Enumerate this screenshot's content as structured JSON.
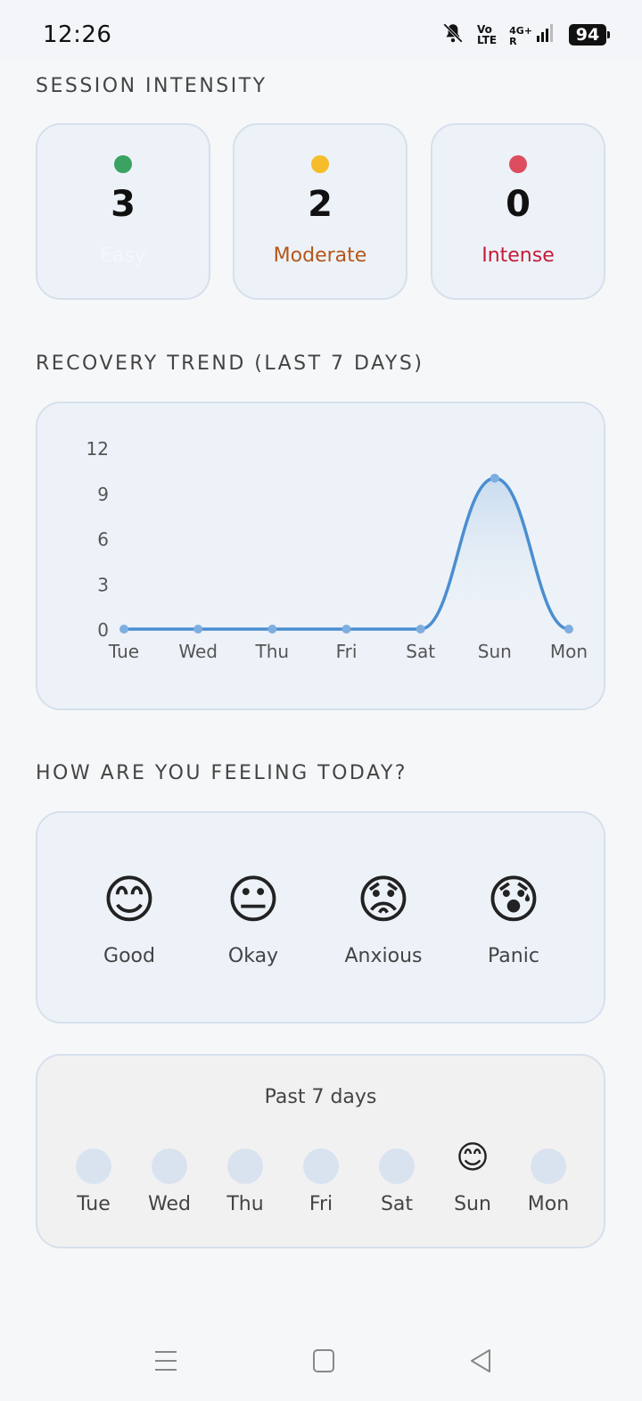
{
  "status": {
    "time": "12:26",
    "volte_top": "Vo",
    "volte_bottom": "LTE",
    "network": "4G+",
    "network_sub": "R",
    "battery": "94"
  },
  "intensity": {
    "title": "SESSION INTENSITY",
    "cards": [
      {
        "count": "3",
        "label": "Easy",
        "dot_color": "#3aa361",
        "label_color": "#f4f7fb"
      },
      {
        "count": "2",
        "label": "Moderate",
        "dot_color": "#f5bd2a",
        "label_color": "#b5561a"
      },
      {
        "count": "0",
        "label": "Intense",
        "dot_color": "#dd4d5f",
        "label_color": "#c41b38"
      }
    ]
  },
  "recovery": {
    "title": "RECOVERY TREND (LAST 7 DAYS)"
  },
  "chart_data": {
    "type": "line",
    "categories": [
      "Tue",
      "Wed",
      "Thu",
      "Fri",
      "Sat",
      "Sun",
      "Mon"
    ],
    "values": [
      0,
      0,
      0,
      0,
      0,
      10,
      0
    ],
    "yticks": [
      "0",
      "3",
      "6",
      "9",
      "12"
    ],
    "ylim": [
      0,
      12
    ],
    "title": "",
    "xlabel": "",
    "ylabel": "",
    "line_color": "#4a8ed0",
    "grid": false
  },
  "feeling": {
    "title": "HOW ARE YOU FEELING TODAY?",
    "moods": [
      {
        "emoji": "😊",
        "label": "Good"
      },
      {
        "emoji": "😐",
        "label": "Okay"
      },
      {
        "emoji": "😟",
        "label": "Anxious"
      },
      {
        "emoji": "😰",
        "label": "Panic"
      }
    ]
  },
  "past": {
    "title": "Past 7 days",
    "days": [
      {
        "label": "Tue",
        "emoji": ""
      },
      {
        "label": "Wed",
        "emoji": ""
      },
      {
        "label": "Thu",
        "emoji": ""
      },
      {
        "label": "Fri",
        "emoji": ""
      },
      {
        "label": "Sat",
        "emoji": ""
      },
      {
        "label": "Sun",
        "emoji": "😊"
      },
      {
        "label": "Mon",
        "emoji": ""
      }
    ]
  },
  "icons": {
    "mute": "bell-off-icon",
    "signal": "signal-bars-icon",
    "nav_menu": "menu-icon",
    "nav_home": "home-square-icon",
    "nav_back": "back-triangle-icon"
  }
}
